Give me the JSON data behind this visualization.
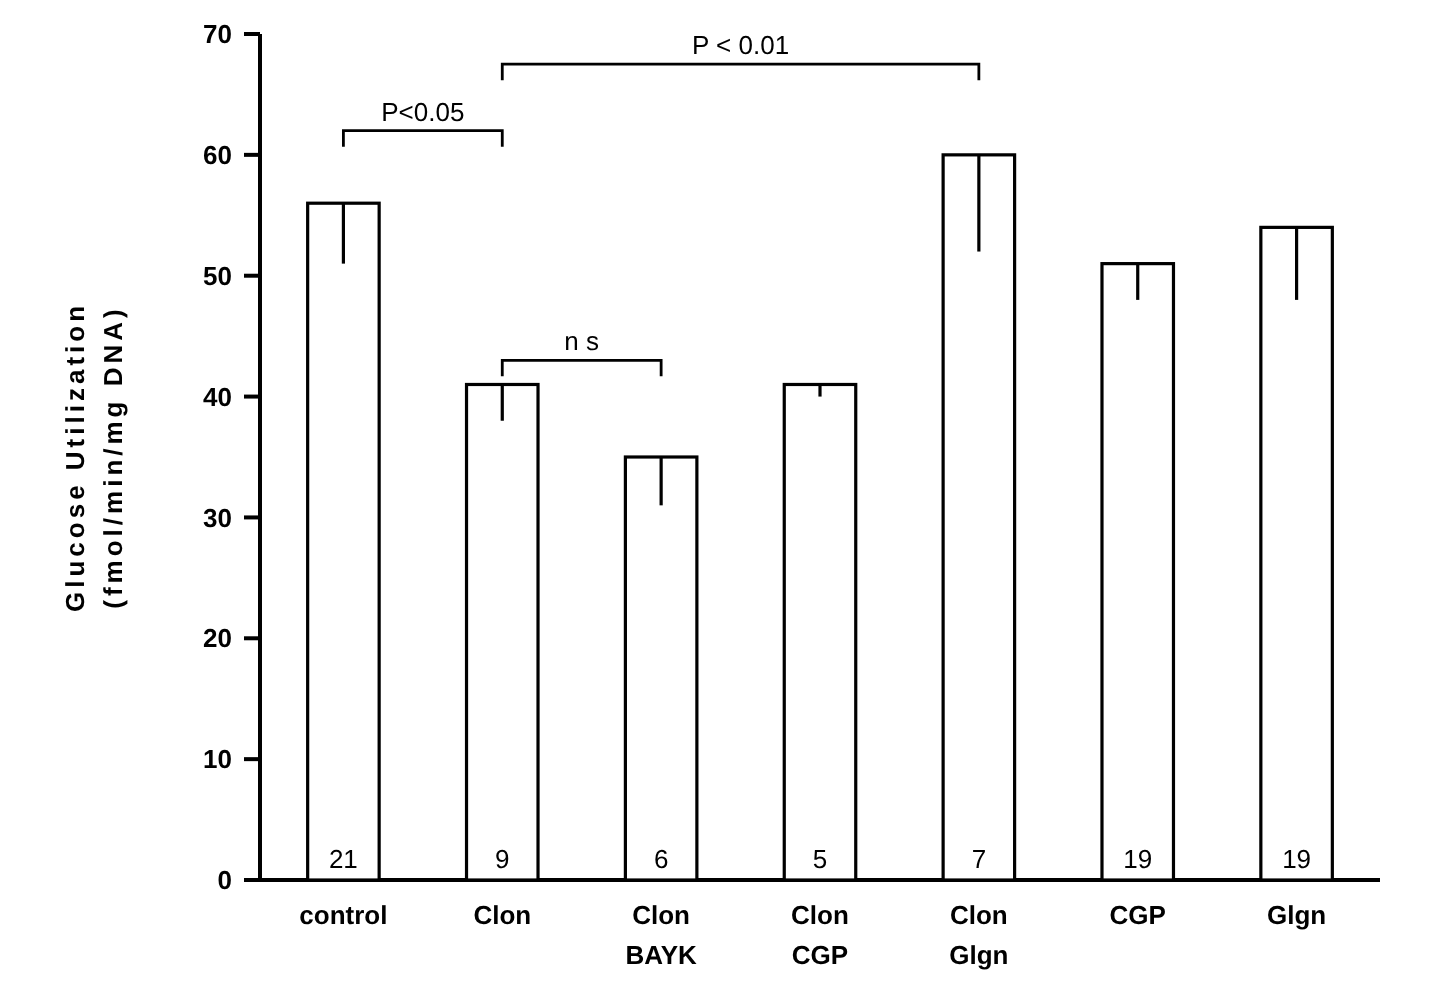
{
  "chart_data": {
    "type": "bar",
    "ylabel": "Glucose Utilization\n(fmol/min/mg DNA)",
    "categories": [
      "control",
      "Clon",
      "Clon\nBAYK",
      "Clon\nCGP",
      "Clon\nGlgn",
      "CGP",
      "Glgn"
    ],
    "values": [
      56,
      41,
      35,
      41,
      60,
      51,
      54
    ],
    "errors": [
      [
        51,
        56
      ],
      [
        38,
        41
      ],
      [
        31,
        35
      ],
      [
        40,
        41
      ],
      [
        52,
        60
      ],
      [
        48,
        51
      ],
      [
        48,
        54
      ]
    ],
    "color": "#ffffff",
    "ylim": [
      0,
      70
    ],
    "yticks": [
      0,
      10,
      20,
      30,
      40,
      50,
      60,
      70
    ],
    "annotations": [
      {
        "text": "21",
        "x": "control",
        "y": 0
      },
      {
        "text": "9",
        "x": "Clon",
        "y": 0
      },
      {
        "text": "6",
        "x": "Clon\nBAYK",
        "y": 0
      },
      {
        "text": "5",
        "x": "Clon\nCGP",
        "y": 0
      },
      {
        "text": "7",
        "x": "Clon\nGlgn",
        "y": 0
      },
      {
        "text": "19",
        "x": "CGP",
        "y": 0
      },
      {
        "text": "19",
        "x": "Glgn",
        "y": 0
      },
      "P<0.05",
      "P < 0.01",
      "n s"
    ]
  }
}
